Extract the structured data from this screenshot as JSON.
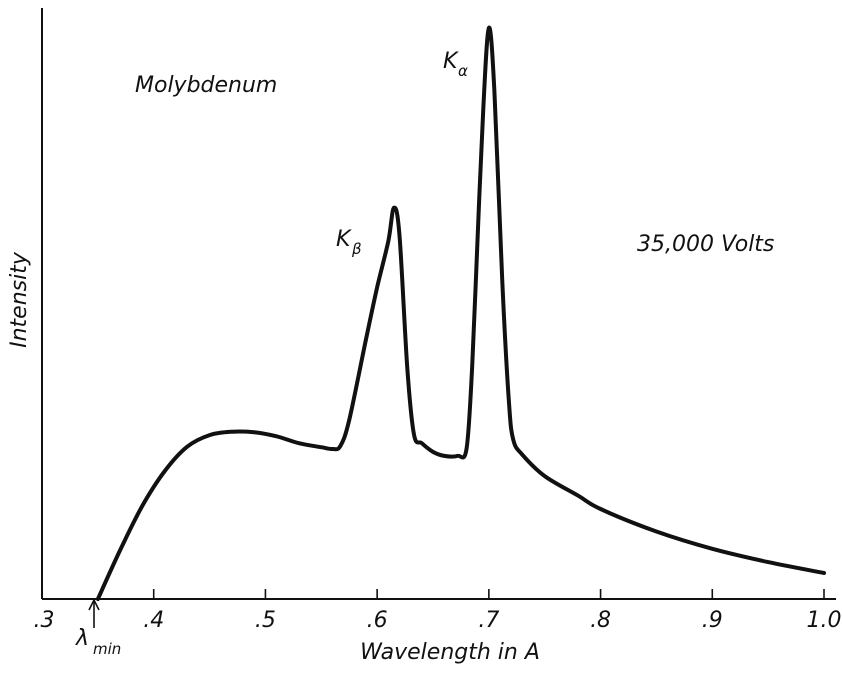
{
  "chart_data": {
    "type": "line",
    "title": "",
    "xlabel": "Wavelength in A",
    "ylabel": "Intensity",
    "xlim": [
      0.3,
      1.0
    ],
    "ylim": [
      0,
      100
    ],
    "grid": false,
    "x_ticks": [
      0.3,
      0.4,
      0.5,
      0.6,
      0.7,
      0.8,
      0.9,
      1.0
    ],
    "x_tick_labels": [
      ".3",
      ".4",
      ".5",
      ".6",
      ".7",
      ".8",
      ".9",
      "1.0"
    ],
    "series": [
      {
        "points": [
          [
            0.35,
            0
          ],
          [
            0.37,
            8.5
          ],
          [
            0.39,
            16.2
          ],
          [
            0.41,
            22.2
          ],
          [
            0.43,
            26.4
          ],
          [
            0.45,
            28.4
          ],
          [
            0.47,
            29.0
          ],
          [
            0.49,
            28.9
          ],
          [
            0.51,
            28.2
          ],
          [
            0.53,
            27.0
          ],
          [
            0.55,
            26.3
          ],
          [
            0.56,
            26.0
          ],
          [
            0.567,
            26.5
          ],
          [
            0.575,
            31.0
          ],
          [
            0.59,
            45.0
          ],
          [
            0.6,
            54.0
          ],
          [
            0.61,
            62.0
          ],
          [
            0.615,
            67.8
          ],
          [
            0.62,
            63.0
          ],
          [
            0.627,
            40.0
          ],
          [
            0.633,
            28.5
          ],
          [
            0.64,
            27.0
          ],
          [
            0.65,
            25.5
          ],
          [
            0.66,
            24.8
          ],
          [
            0.672,
            24.8
          ],
          [
            0.68,
            26.0
          ],
          [
            0.685,
            40.0
          ],
          [
            0.69,
            63.0
          ],
          [
            0.695,
            85.0
          ],
          [
            0.7,
            99.0
          ],
          [
            0.705,
            88.0
          ],
          [
            0.712,
            55.0
          ],
          [
            0.718,
            34.0
          ],
          [
            0.722,
            27.5
          ],
          [
            0.73,
            25.0
          ],
          [
            0.75,
            21.3
          ],
          [
            0.78,
            17.9
          ],
          [
            0.8,
            15.6
          ],
          [
            0.85,
            11.7
          ],
          [
            0.9,
            8.7
          ],
          [
            0.95,
            6.4
          ],
          [
            1.0,
            4.5
          ]
        ]
      }
    ]
  },
  "annotations": {
    "element": "Molybdenum",
    "voltage": "35,000 Volts",
    "k_alpha": "K",
    "k_alpha_sub": "α",
    "k_beta": "K",
    "k_beta_sub": "β",
    "lambda_min": "λ",
    "lambda_min_sub": "min"
  }
}
